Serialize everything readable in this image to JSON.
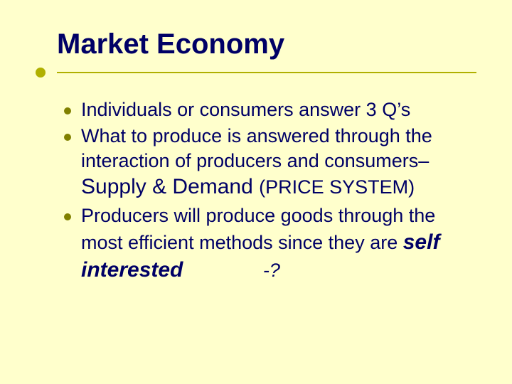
{
  "slide": {
    "background_color": "#ffffcc",
    "text_color": "#000066",
    "accent_color": "#b0b000",
    "bullet_color": "#808000",
    "title_fontsize": 40,
    "body_fontsize": 27,
    "emphasis_fontsize": 30,
    "title": "Market Economy",
    "bullets": [
      {
        "text": "Individuals or consumers answer 3 Q’s"
      },
      {
        "text": "What to produce is answered through the interaction of producers and consumers– "
      }
    ],
    "supply_line": {
      "main": "Supply & Demand ",
      "paren": "(PRICE SYSTEM)"
    },
    "bullet3": {
      "lead": "Producers will produce goods through the most efficient methods since they are ",
      "self_interested": "self interested",
      "spacer": "               ",
      "trailing": "-?"
    }
  }
}
